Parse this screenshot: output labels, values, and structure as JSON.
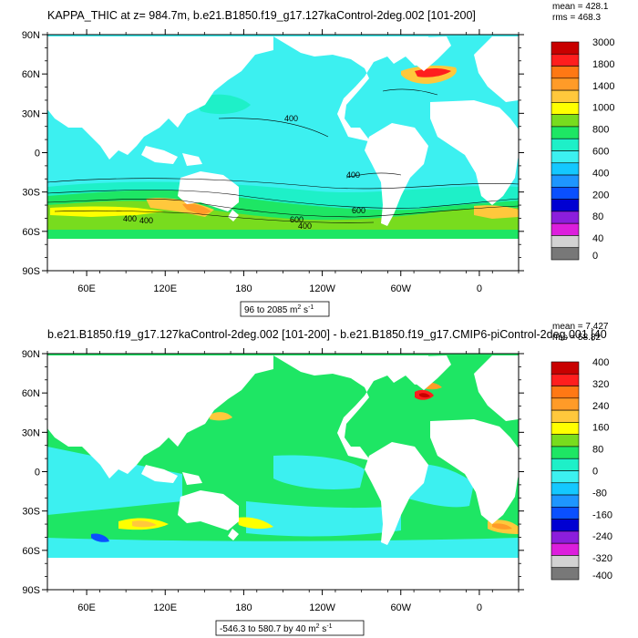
{
  "chart_data": [
    {
      "type": "heatmap",
      "title": "KAPPA_THIC at z= 984.7m, b.e21.B1850.f19_g17.127kaControl-2deg.002 [101-200]",
      "stats": [
        "mean = 428.1",
        "rms = 468.3"
      ],
      "range_label_prefix": "96 to 2085 m",
      "units_exp": "2",
      "units_tail": " s",
      "units_exp2": "-1",
      "y_ticks": [
        "90N",
        "60N",
        "30N",
        "0",
        "30S",
        "60S",
        "90S"
      ],
      "x_ticks": [
        "60E",
        "120E",
        "180",
        "120W",
        "60W",
        "0"
      ],
      "colorbar_levels": [
        "3000",
        "1800",
        "1400",
        "1000",
        "800",
        "600",
        "400",
        "200",
        "80",
        "40",
        "0"
      ],
      "colorbar_colors": [
        "#c80000",
        "#ff1e1e",
        "#ff7814",
        "#ff9b28",
        "#ffc83c",
        "#ffff00",
        "#78dc1e",
        "#1ee664",
        "#1ef0c8",
        "#3cf0f0",
        "#14c8ff",
        "#1e96ff",
        "#0a50ff",
        "#0000d2",
        "#8c1edc",
        "#dc1edc",
        "#d2d2d2",
        "#787878"
      ],
      "contour_labels": [
        "400",
        "400",
        "400",
        "600",
        "600",
        "400",
        "400"
      ]
    },
    {
      "type": "heatmap",
      "title": "b.e21.B1850.f19_g17.127kaControl-2deg.002 [101-200] - b.e21.B1850.f19_g17.CMIP6-piControl-2deg.001 [40",
      "stats": [
        "mean = 7.427",
        "rms = 58.82"
      ],
      "range_label_prefix": "-546.3 to 580.7 by 40 m",
      "units_exp": "2",
      "units_tail": " s",
      "units_exp2": "-1",
      "y_ticks": [
        "90N",
        "60N",
        "30N",
        "0",
        "30S",
        "60S",
        "90S"
      ],
      "x_ticks": [
        "60E",
        "120E",
        "180",
        "120W",
        "60W",
        "0"
      ],
      "colorbar_levels": [
        "400",
        "320",
        "240",
        "160",
        "80",
        "0",
        "-80",
        "-160",
        "-240",
        "-320",
        "-400"
      ],
      "colorbar_colors": [
        "#c80000",
        "#ff1e1e",
        "#ff7814",
        "#ff9b28",
        "#ffc83c",
        "#ffff00",
        "#78dc1e",
        "#1ee664",
        "#1ef0c8",
        "#3cf0f0",
        "#14c8ff",
        "#1e96ff",
        "#0a50ff",
        "#0000d2",
        "#8c1edc",
        "#dc1edc",
        "#d2d2d2",
        "#787878"
      ]
    }
  ]
}
